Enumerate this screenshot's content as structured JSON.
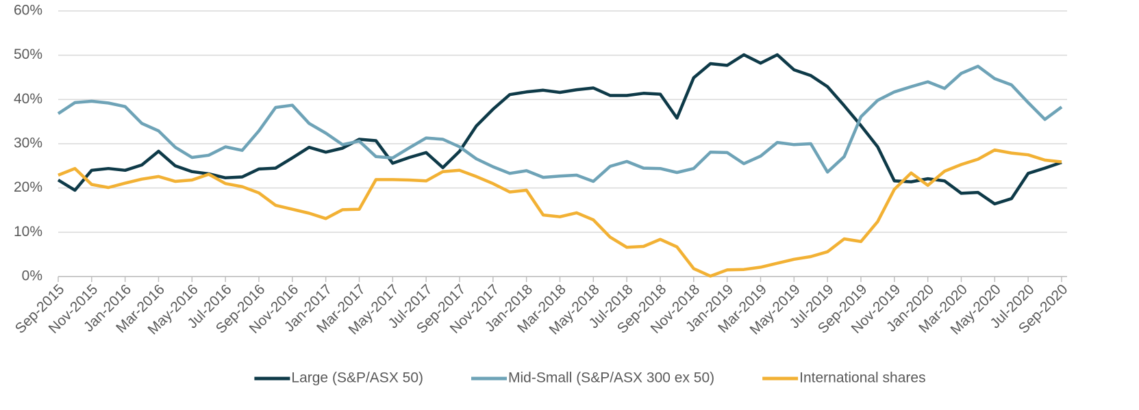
{
  "chart_data": {
    "type": "line",
    "categories": [
      "Sep-2015",
      null,
      "Nov-2015",
      null,
      "Jan-2016",
      null,
      "Mar-2016",
      null,
      "May-2016",
      null,
      "Jul-2016",
      null,
      "Sep-2016",
      null,
      "Nov-2016",
      null,
      "Jan-2017",
      null,
      "Mar-2017",
      null,
      "May-2017",
      null,
      "Jul-2017",
      null,
      "Sep-2017",
      null,
      "Nov-2017",
      null,
      "Jan-2018",
      null,
      "Mar-2018",
      null,
      "May-2018",
      null,
      "Jul-2018",
      null,
      "Sep-2018",
      null,
      "Nov-2018",
      null,
      "Jan-2019",
      null,
      "Mar-2019",
      null,
      "May-2019",
      null,
      "Jul-2019",
      null,
      "Sep-2019",
      null,
      "Nov-2019",
      null,
      "Jan-2020",
      null,
      "Mar-2020",
      null,
      "May-2020",
      null,
      "Jul-2020",
      null,
      "Sep-2020"
    ],
    "series": [
      {
        "name": "Large (S&P/ASX 50)",
        "color": "#0e3a48",
        "values": [
          21.8,
          19.5,
          24,
          24.4,
          24,
          25.2,
          28.3,
          25,
          23.7,
          23.2,
          22.3,
          22.5,
          24.3,
          24.5,
          26.8,
          29.2,
          28.1,
          29,
          31,
          30.7,
          25.6,
          26.9,
          28,
          24.6,
          28.3,
          34,
          37.8,
          41.1,
          41.7,
          42.1,
          41.6,
          42.2,
          42.6,
          40.9,
          40.9,
          41.4,
          41.2,
          35.8,
          44.9,
          48.1,
          47.7,
          50.1,
          48.2,
          50.1,
          46.7,
          45.4,
          42.9,
          38.6,
          34.1,
          29.3,
          21.6,
          21.4,
          22.1,
          21.6,
          18.8,
          19,
          16.4,
          17.6,
          23.3,
          24.5,
          25.8
        ]
      },
      {
        "name": "Mid-Small (S&P/ASX 300 ex 50)",
        "color": "#6ea3b7",
        "values": [
          36.8,
          39.3,
          39.6,
          39.2,
          38.4,
          34.6,
          32.9,
          29.2,
          26.9,
          27.4,
          29.3,
          28.5,
          32.9,
          38.2,
          38.7,
          34.6,
          32.4,
          29.8,
          30.6,
          27.1,
          26.8,
          29.1,
          31.3,
          31,
          29.3,
          26.6,
          24.8,
          23.3,
          23.9,
          22.4,
          22.7,
          22.9,
          21.5,
          24.9,
          26,
          24.5,
          24.4,
          23.5,
          24.4,
          28.1,
          28,
          25.5,
          27.2,
          30.3,
          29.8,
          30,
          23.6,
          27.1,
          36.1,
          39.8,
          41.7,
          42.9,
          44,
          42.5,
          45.9,
          47.5,
          44.7,
          43.3,
          39.3,
          35.5,
          38.3
        ]
      },
      {
        "name": "International shares",
        "color": "#f2b134",
        "values": [
          22.9,
          24.4,
          20.8,
          20.1,
          21.1,
          22,
          22.6,
          21.5,
          21.8,
          23.1,
          21,
          20.3,
          18.9,
          16.1,
          15.2,
          14.3,
          13.1,
          15.1,
          15.2,
          21.9,
          21.9,
          21.8,
          21.6,
          23.7,
          24,
          22.6,
          21,
          19.1,
          19.5,
          13.9,
          13.5,
          14.4,
          12.8,
          8.9,
          6.6,
          6.8,
          8.4,
          6.7,
          1.8,
          0.1,
          1.5,
          1.6,
          2.1,
          3,
          3.9,
          4.5,
          5.6,
          8.5,
          7.9,
          12.4,
          19.7,
          23.4,
          20.6,
          23.8,
          25.3,
          26.5,
          28.6,
          27.9,
          27.5,
          26.3,
          25.9
        ]
      }
    ],
    "ylim": [
      0,
      60
    ],
    "yticks": [
      {
        "value": 0,
        "label": "0%"
      },
      {
        "value": 10,
        "label": "10%"
      },
      {
        "value": 20,
        "label": "20%"
      },
      {
        "value": 30,
        "label": "30%"
      },
      {
        "value": 40,
        "label": "40%"
      },
      {
        "value": 50,
        "label": "50%"
      },
      {
        "value": 60,
        "label": "60%"
      }
    ],
    "grid": true,
    "legend": "bottom"
  }
}
